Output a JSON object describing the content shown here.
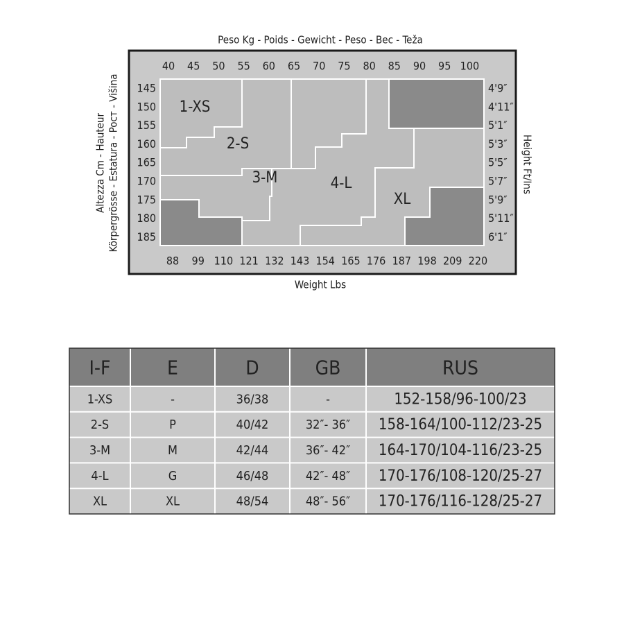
{
  "diagram": {
    "top_axis_title": "Peso Kg - Poids - Gewicht - Peso - Bec - Teža",
    "left_axis_title_1": "Altezza Cm - Hauteur",
    "left_axis_title_2": "Körpergrösse - Estatura - Pocт - Višina",
    "right_axis_title": "Height Ft/Ins",
    "bottom_axis_title": "Weight Lbs",
    "kg_ticks": [
      40,
      45,
      50,
      55,
      60,
      65,
      70,
      75,
      80,
      85,
      90,
      95,
      100
    ],
    "cm_ticks": [
      145,
      150,
      155,
      160,
      165,
      170,
      175,
      180,
      185
    ],
    "ftin_ticks": [
      "4'9″",
      "4'11″",
      "5'1″",
      "5'3″",
      "5'5″",
      "5'7″",
      "5'9″",
      "5'11″",
      "6'1″"
    ],
    "lbs_ticks": [
      88,
      99,
      110,
      121,
      132,
      143,
      154,
      165,
      176,
      187,
      198,
      209,
      220
    ],
    "regions": [
      "1-XS",
      "2-S",
      "3-M",
      "4-L",
      "XL"
    ]
  },
  "table": {
    "header": [
      "I-F",
      "E",
      "D",
      "GB",
      "RUS"
    ],
    "rows": [
      [
        "1-XS",
        "-",
        "36/38",
        "-",
        "152-158/96-100/23"
      ],
      [
        "2-S",
        "P",
        "40/42",
        "32″- 36″",
        "158-164/100-112/23-25"
      ],
      [
        "3-M",
        "M",
        "42/44",
        "36″- 42″",
        "164-170/104-116/23-25"
      ],
      [
        "4-L",
        "G",
        "46/48",
        "42″- 48″",
        "170-176/108-120/25-27"
      ],
      [
        "XL",
        "XL",
        "48/54",
        "48″- 56″",
        "170-176/116-128/25-27"
      ]
    ]
  }
}
